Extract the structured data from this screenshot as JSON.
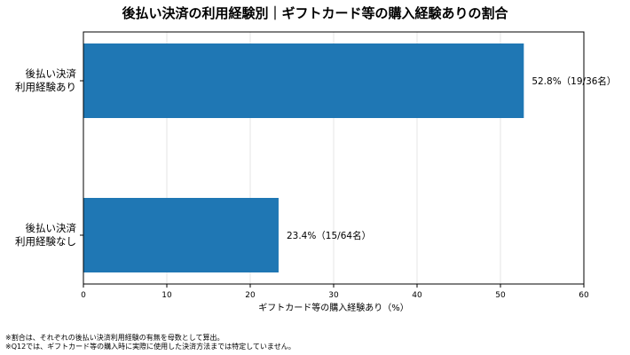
{
  "chart_data": {
    "type": "bar",
    "orientation": "horizontal",
    "title": "後払い決済の利用経験別｜ギフトカード等の購入経験ありの割合",
    "xlabel": "ギフトカード等の購入経験あり（%）",
    "ylabel": "",
    "xlim": [
      0,
      60
    ],
    "xticks": [
      0,
      10,
      20,
      30,
      40,
      50,
      60
    ],
    "grid": "vertical",
    "bar_color": "#1f77b4",
    "categories": [
      [
        "後払い決済",
        "利用経験あり"
      ],
      [
        "後払い決済",
        "利用経験なし"
      ]
    ],
    "values": [
      52.8,
      23.4
    ],
    "data_labels": [
      "52.8%（19/36名）",
      "23.4%（15/64名）"
    ]
  },
  "footnotes": [
    "※割合は、それぞれの後払い決済利用経験の有無を母数として算出。",
    "※Q12では、ギフトカード等の購入時に実際に使用した決済方法までは特定していません。"
  ]
}
